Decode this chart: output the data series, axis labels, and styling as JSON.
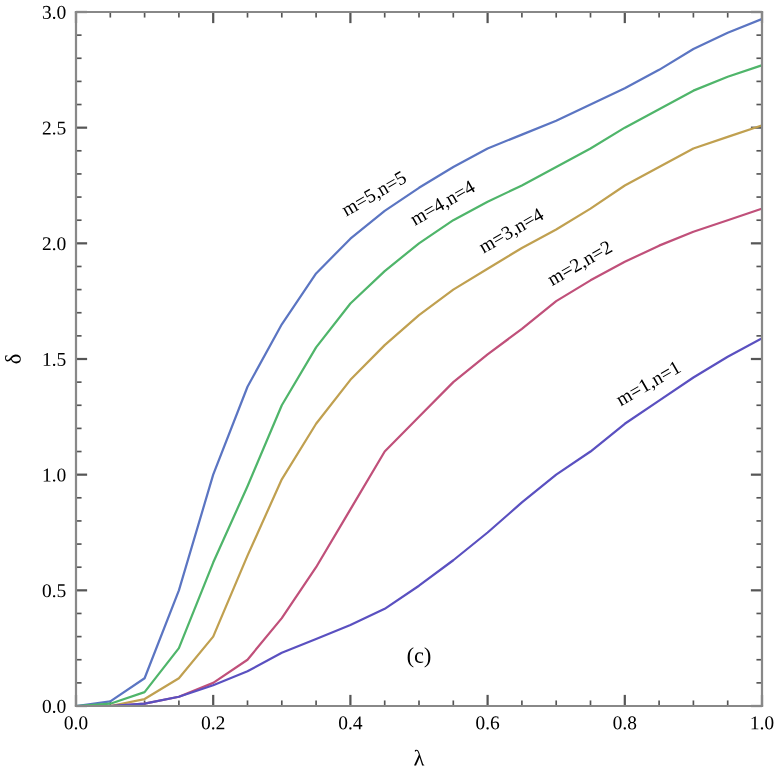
{
  "chart_data": {
    "type": "line",
    "xlabel": "λ",
    "ylabel": "δ",
    "x": [
      0,
      0.05,
      0.1,
      0.15,
      0.2,
      0.25,
      0.3,
      0.35,
      0.4,
      0.45,
      0.5,
      0.55,
      0.6,
      0.65,
      0.7,
      0.75,
      0.8,
      0.85,
      0.9,
      0.95,
      1.0
    ],
    "series": [
      {
        "color": "#5b75c2",
        "values": [
          0,
          0.02,
          0.12,
          0.5,
          1.0,
          1.38,
          1.65,
          1.87,
          2.02,
          2.14,
          2.24,
          2.33,
          2.41,
          2.47,
          2.53,
          2.6,
          2.67,
          2.75,
          2.84,
          2.91,
          2.97
        ]
      },
      {
        "color": "#4fb56a",
        "values": [
          0,
          0.01,
          0.06,
          0.25,
          0.62,
          0.95,
          1.3,
          1.55,
          1.74,
          1.88,
          2.0,
          2.1,
          2.18,
          2.25,
          2.33,
          2.41,
          2.5,
          2.58,
          2.66,
          2.72,
          2.77
        ]
      },
      {
        "color": "#c0a050",
        "values": [
          0,
          0,
          0.03,
          0.12,
          0.3,
          0.65,
          0.98,
          1.22,
          1.41,
          1.56,
          1.69,
          1.8,
          1.89,
          1.98,
          2.06,
          2.15,
          2.25,
          2.33,
          2.41,
          2.46,
          2.51
        ]
      },
      {
        "color": "#c0507a",
        "values": [
          0,
          0,
          0.01,
          0.04,
          0.1,
          0.2,
          0.38,
          0.6,
          0.85,
          1.1,
          1.25,
          1.4,
          1.52,
          1.63,
          1.75,
          1.84,
          1.92,
          1.99,
          2.05,
          2.1,
          2.15
        ]
      },
      {
        "color": "#5a50c0",
        "values": [
          0,
          0,
          0.01,
          0.04,
          0.09,
          0.15,
          0.23,
          0.29,
          0.35,
          0.42,
          0.52,
          0.63,
          0.75,
          0.88,
          1.0,
          1.1,
          1.22,
          1.32,
          1.42,
          1.51,
          1.59
        ]
      }
    ],
    "annotations": [
      {
        "text": "m=5,n=5",
        "x": 0.45,
        "y": 2.14
      },
      {
        "text": "m=4,n=4",
        "x": 0.55,
        "y": 2.1
      },
      {
        "text": "m=3,n=4",
        "x": 0.65,
        "y": 1.98
      },
      {
        "text": "m=2,n=2",
        "x": 0.75,
        "y": 1.84
      },
      {
        "text": "m=1,n=1",
        "x": 0.85,
        "y": 1.32
      },
      "(c)"
    ],
    "xlim": [
      0,
      1
    ],
    "ylim": [
      0,
      3
    ],
    "xticks": [
      {
        "value": 0,
        "label": "0.0"
      },
      0.2,
      0.4,
      0.6,
      0.8,
      {
        "value": 1,
        "label": "1.0"
      }
    ],
    "yticks": [
      {
        "value": 0,
        "label": "0.0"
      },
      0.5,
      {
        "value": 1,
        "label": "1.0"
      },
      1.5,
      {
        "value": 2,
        "label": "2.0"
      },
      2.5,
      {
        "value": 3,
        "label": "3.0"
      }
    ],
    "grid": false,
    "marker": "none",
    "line_style": "solid"
  }
}
